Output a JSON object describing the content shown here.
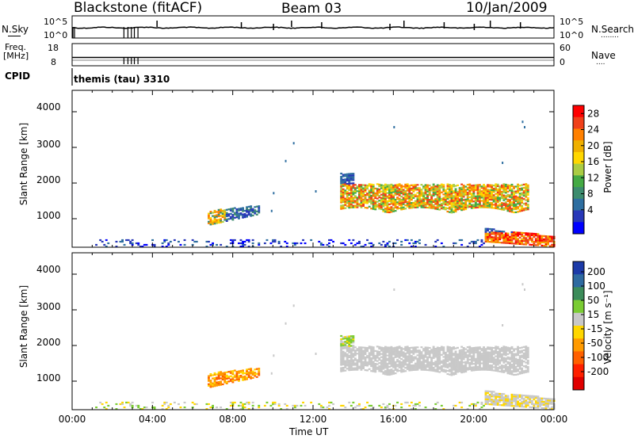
{
  "header": {
    "station": "Blackstone (fitACF)",
    "beam": "Beam 03",
    "date": "10/Jan/2009"
  },
  "panels": {
    "nsky": {
      "label": "N.Sky",
      "left_ticks": [
        "10^5",
        "10^0"
      ],
      "right_ticks": [
        "10^5",
        "10^0"
      ],
      "right_label": "N.Search",
      "right_label_dots": "........"
    },
    "freq": {
      "label_top": "Freq.",
      "label_unit": "[MHz]",
      "left_ticks": [
        "18",
        "8"
      ],
      "right_ticks": [
        "60",
        "0"
      ],
      "right_label": "Nave",
      "right_label_dots": "...."
    },
    "cpid": {
      "label": "CPID",
      "value": "themis (tau) 3310"
    }
  },
  "axes": {
    "ylabel": "Slant Range [km]",
    "yticks": [
      "4000",
      "3000",
      "2000",
      "1000"
    ],
    "xticks": [
      "00:00",
      "04:00",
      "08:00",
      "12:00",
      "16:00",
      "20:00",
      "00:00"
    ],
    "xlabel": "Time UT"
  },
  "colorbars": {
    "power": {
      "label": "Power [dB]",
      "ticks": [
        "28",
        "24",
        "20",
        "16",
        "12",
        "8",
        "4"
      ],
      "colors": [
        "#ff0000",
        "#f0401a",
        "#ff8000",
        "#f0b000",
        "#ffd700",
        "#aacc44",
        "#44aa44",
        "#3c8c6e",
        "#2e6ea0",
        "#2838b8",
        "#0000ff"
      ]
    },
    "velocity": {
      "label": "Velocity [m s⁻¹]",
      "ticks": [
        "200",
        "100",
        "50",
        "15",
        "-15",
        "-50",
        "-100",
        "-200"
      ],
      "colors": [
        "#1c3aa8",
        "#2e6aa0",
        "#3c8c5a",
        "#7acc33",
        "#c8c8c8",
        "#ffd700",
        "#ff9a00",
        "#ff6000",
        "#ff2000",
        "#e00000"
      ]
    }
  },
  "chart_data": [
    {
      "type": "heatmap",
      "title": "Power",
      "xlabel": "Time UT",
      "ylabel": "Slant Range [km]",
      "xlim": [
        0,
        24
      ],
      "ylim": [
        200,
        4600
      ],
      "colorbar_label": "Power [dB]",
      "colorbar_range": [
        0,
        30
      ],
      "regions": [
        {
          "t": [
            6.7,
            9.3
          ],
          "range": [
            800,
            1300
          ],
          "dominant": "green/orange"
        },
        {
          "t": [
            13.3,
            22.7
          ],
          "range": [
            1200,
            2300
          ],
          "dominant": "orange/green"
        },
        {
          "t": [
            20.5,
            24.0
          ],
          "range": [
            200,
            800
          ],
          "dominant": "orange/red"
        },
        {
          "t": [
            1.0,
            24.0
          ],
          "range": [
            200,
            400
          ],
          "dominant": "blue"
        }
      ]
    },
    {
      "type": "heatmap",
      "title": "Velocity",
      "xlabel": "Time UT",
      "ylabel": "Slant Range [km]",
      "xlim": [
        0,
        24
      ],
      "ylim": [
        200,
        4600
      ],
      "colorbar_label": "Velocity [m s-1]",
      "colorbar_range": [
        -250,
        250
      ],
      "regions": [
        {
          "t": [
            6.7,
            9.3
          ],
          "range": [
            800,
            1300
          ],
          "dominant": "orange (-50 to -100)"
        },
        {
          "t": [
            13.3,
            22.7
          ],
          "range": [
            1200,
            2300
          ],
          "dominant": "grey (ground scatter)"
        },
        {
          "t": [
            20.5,
            24.0
          ],
          "range": [
            200,
            800
          ],
          "dominant": "grey"
        }
      ]
    }
  ]
}
